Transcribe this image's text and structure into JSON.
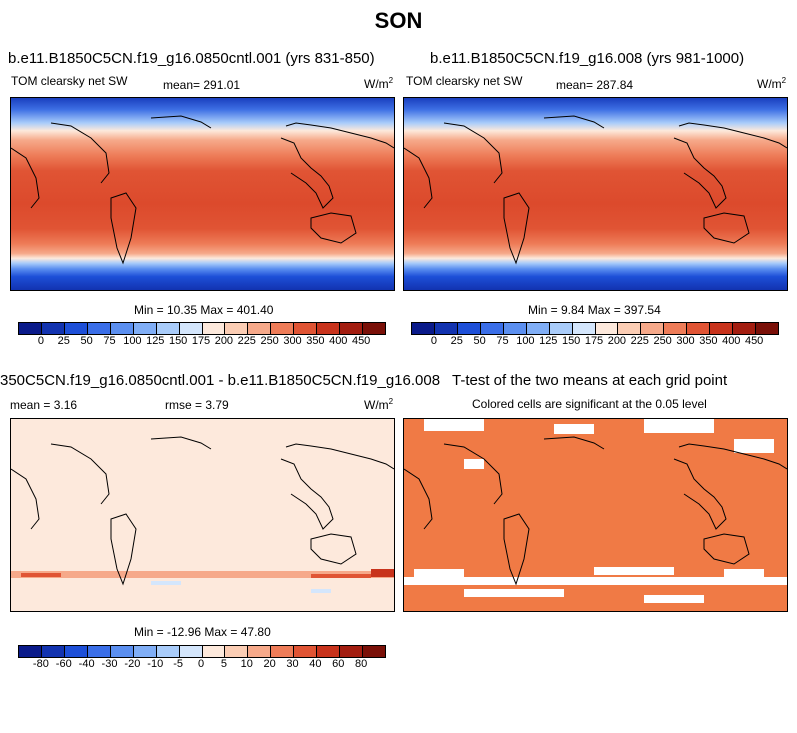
{
  "figure_title": "SON",
  "panels": [
    {
      "title": "b.e11.B1850C5CN.f19_g16.0850cntl.001 (yrs 831-850)",
      "variable": "TOM clearsky net SW",
      "mean_label": "mean= 291.01",
      "units": "W/m",
      "units_sup": "2",
      "minmax": "Min =  10.35 Max = 401.40"
    },
    {
      "title": "b.e11.B1850C5CN.f19_g16.008 (yrs 981-1000)",
      "variable": "TOM clearsky net SW",
      "mean_label": "mean= 287.84",
      "units": "W/m",
      "units_sup": "2",
      "minmax": "Min =   9.84 Max = 397.54"
    },
    {
      "title": "350C5CN.f19_g16.0850cntl.001 - b.e11.B1850C5CN.f19_g16.008",
      "mean_label": "mean =   3.16",
      "rmse_label": "rmse =   3.79",
      "units": "W/m",
      "units_sup": "2",
      "minmax": "Min = -12.96 Max =  47.80"
    },
    {
      "title": "T-test of the two means at each grid point",
      "subtitle": "Colored cells are significant at the 0.05 level"
    }
  ],
  "colorbar_abs": {
    "labels": [
      "0",
      "25",
      "50",
      "75",
      "100",
      "125",
      "150",
      "175",
      "200",
      "225",
      "250",
      "300",
      "350",
      "400",
      "450"
    ],
    "colors": [
      "#0a1a8a",
      "#1233b0",
      "#1d4fd8",
      "#3a6ee8",
      "#5b8ff0",
      "#80aef6",
      "#a9ccfa",
      "#d4e6fc",
      "#fde9dc",
      "#fbcdb4",
      "#f6a98a",
      "#ee7c58",
      "#e05434",
      "#c8331c",
      "#a31d10",
      "#7a1008"
    ]
  },
  "colorbar_diff": {
    "labels": [
      "-80",
      "-60",
      "-40",
      "-30",
      "-20",
      "-10",
      "-5",
      "0",
      "5",
      "10",
      "20",
      "30",
      "40",
      "60",
      "80"
    ],
    "colors": [
      "#0a1a8a",
      "#1233b0",
      "#1d4fd8",
      "#3a6ee8",
      "#5b8ff0",
      "#80aef6",
      "#a9ccfa",
      "#d4e6fc",
      "#fde9dc",
      "#fbcdb4",
      "#f6a98a",
      "#ee7c58",
      "#e05434",
      "#c8331c",
      "#a31d10",
      "#7a1008"
    ]
  }
}
